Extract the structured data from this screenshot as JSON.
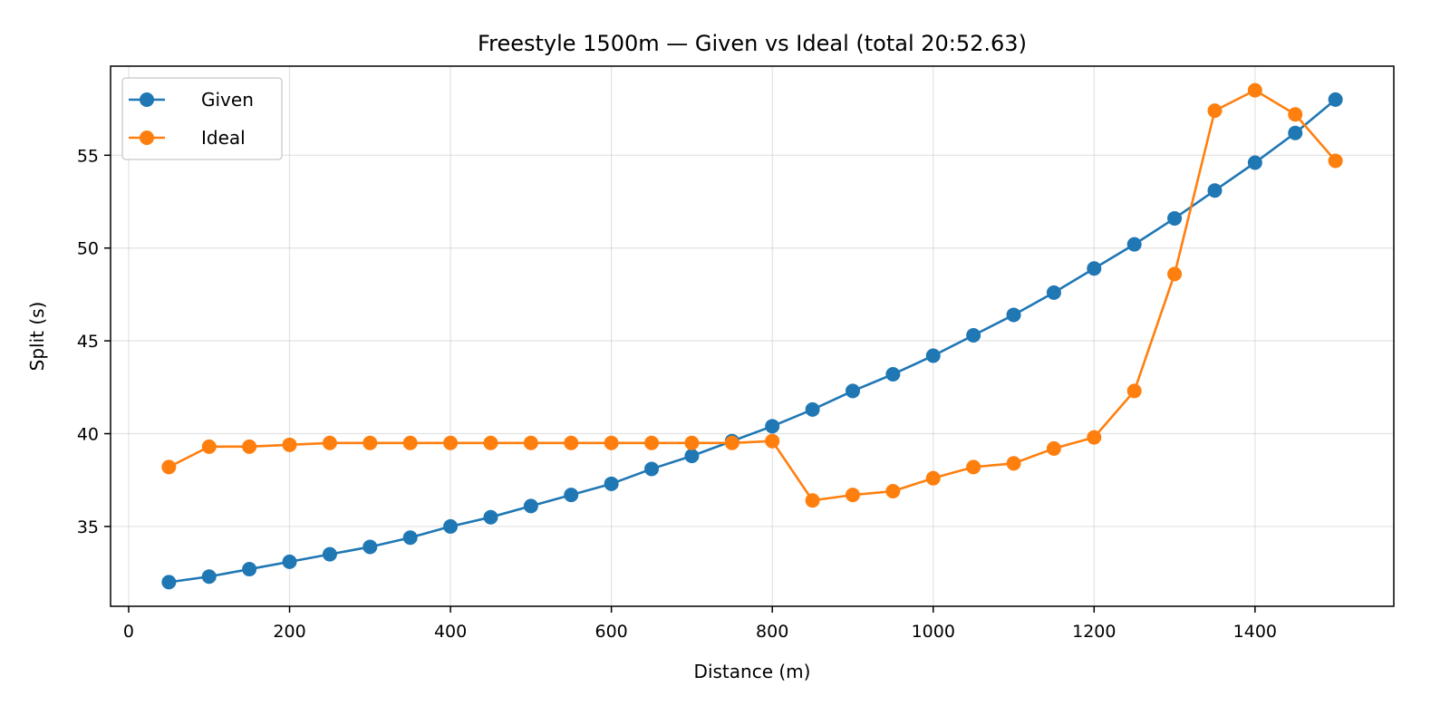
{
  "chart_data": {
    "type": "line",
    "title": "Freestyle 1500m — Given vs Ideal (total 20:52.63)",
    "xlabel": "Distance (m)",
    "ylabel": "Split (s)",
    "xlim": [
      -22.5,
      1572.5
    ],
    "ylim": [
      30.7,
      59.8
    ],
    "x_ticks": [
      0,
      200,
      400,
      600,
      800,
      1000,
      1200,
      1400
    ],
    "y_ticks": [
      35,
      40,
      45,
      50,
      55
    ],
    "grid": true,
    "legend_position": "top-left",
    "x": [
      50,
      100,
      150,
      200,
      250,
      300,
      350,
      400,
      450,
      500,
      550,
      600,
      650,
      700,
      750,
      800,
      850,
      900,
      950,
      1000,
      1050,
      1100,
      1150,
      1200,
      1250,
      1300,
      1350,
      1400,
      1450,
      1500
    ],
    "series": [
      {
        "name": "Given",
        "color": "#1f77b4",
        "values": [
          32.0,
          32.3,
          32.7,
          33.1,
          33.5,
          33.9,
          34.4,
          35.0,
          35.5,
          36.1,
          36.7,
          37.3,
          38.1,
          38.8,
          39.6,
          40.4,
          41.3,
          42.3,
          43.2,
          44.2,
          45.3,
          46.4,
          47.6,
          48.9,
          50.2,
          51.6,
          53.1,
          54.6,
          56.2,
          58.0
        ]
      },
      {
        "name": "Ideal",
        "color": "#ff7f0e",
        "values": [
          38.2,
          39.3,
          39.3,
          39.4,
          39.5,
          39.5,
          39.5,
          39.5,
          39.5,
          39.5,
          39.5,
          39.5,
          39.5,
          39.5,
          39.5,
          39.6,
          36.4,
          36.7,
          36.9,
          37.6,
          38.2,
          38.4,
          39.2,
          39.8,
          42.3,
          48.6,
          57.4,
          58.5,
          57.2,
          54.7
        ]
      }
    ]
  }
}
